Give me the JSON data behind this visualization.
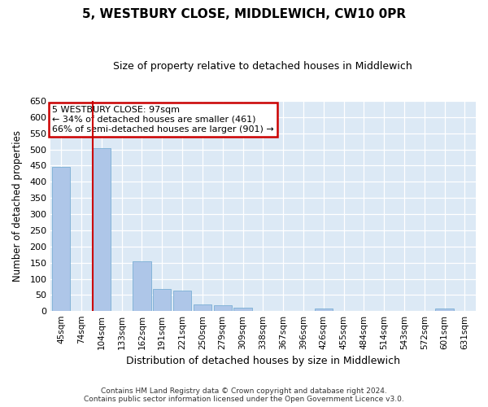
{
  "title": "5, WESTBURY CLOSE, MIDDLEWICH, CW10 0PR",
  "subtitle": "Size of property relative to detached houses in Middlewich",
  "xlabel": "Distribution of detached houses by size in Middlewich",
  "ylabel": "Number of detached properties",
  "footer_line1": "Contains HM Land Registry data © Crown copyright and database right 2024.",
  "footer_line2": "Contains public sector information licensed under the Open Government Licence v3.0.",
  "annotation_line1": "5 WESTBURY CLOSE: 97sqm",
  "annotation_line2": "← 34% of detached houses are smaller (461)",
  "annotation_line3": "66% of semi-detached houses are larger (901) →",
  "bar_color": "#aec6e8",
  "bar_edge_color": "#7aafd4",
  "highlight_line_color": "#cc0000",
  "background_color": "#dce9f5",
  "annotation_box_color": "#ffffff",
  "annotation_box_edge": "#cc0000",
  "categories": [
    "45sqm",
    "74sqm",
    "104sqm",
    "133sqm",
    "162sqm",
    "191sqm",
    "221sqm",
    "250sqm",
    "279sqm",
    "309sqm",
    "338sqm",
    "367sqm",
    "396sqm",
    "426sqm",
    "455sqm",
    "484sqm",
    "514sqm",
    "543sqm",
    "572sqm",
    "601sqm",
    "631sqm"
  ],
  "values": [
    447,
    0,
    505,
    0,
    155,
    70,
    65,
    20,
    18,
    10,
    0,
    0,
    0,
    8,
    0,
    0,
    0,
    0,
    0,
    8,
    0
  ],
  "ylim": [
    0,
    650
  ],
  "yticks": [
    0,
    50,
    100,
    150,
    200,
    250,
    300,
    350,
    400,
    450,
    500,
    550,
    600,
    650
  ],
  "red_line_bin_index": 2,
  "figwidth": 6.0,
  "figheight": 5.0,
  "dpi": 100
}
